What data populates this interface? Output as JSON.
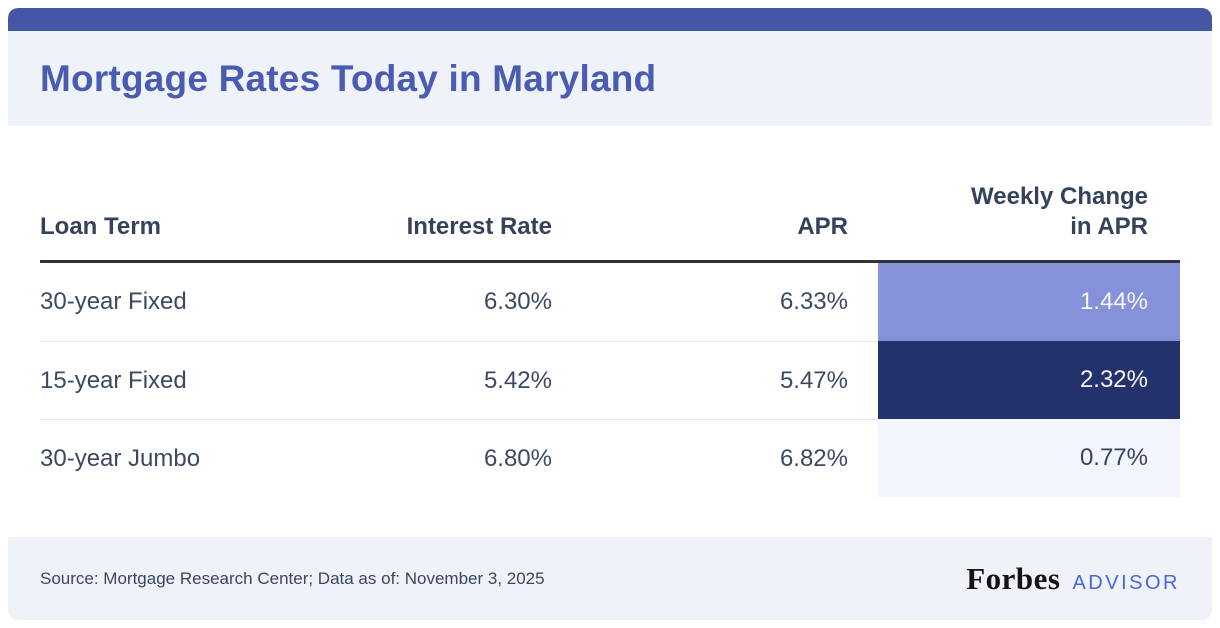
{
  "title": "Mortgage Rates Today in Maryland",
  "table": {
    "columns": {
      "loan_term": "Loan Term",
      "interest_rate": "Interest Rate",
      "apr": "APR",
      "weekly_change": "Weekly Change\nin APR"
    },
    "rows": [
      {
        "term": "30-year Fixed",
        "rate": "6.30%",
        "apr": "6.33%",
        "change": "1.44%",
        "change_bg": "#8591d8",
        "change_color": "#f7f6fb"
      },
      {
        "term": "15-year Fixed",
        "rate": "5.42%",
        "apr": "5.47%",
        "change": "2.32%",
        "change_bg": "#24326b",
        "change_color": "#f7f6fb"
      },
      {
        "term": "30-year Jumbo",
        "rate": "6.80%",
        "apr": "6.82%",
        "change": "0.77%",
        "change_bg": "#f3f5fd",
        "change_color": "#36425c"
      }
    ]
  },
  "footer": {
    "source": "Source: Mortgage Research Center; Data as of: November 3, 2025",
    "brand": "Forbes",
    "brand_suffix": "ADVISOR"
  },
  "colors": {
    "accent_bar": "#4456a4",
    "band_background": "#eff2f8",
    "title_text": "#4a5cb2",
    "header_text": "#36425c",
    "body_text": "#3c4962",
    "header_rule": "#2f3038",
    "row_divider": "#e9e9ec",
    "change_high": "#24326b",
    "change_medium": "#8591d8",
    "change_low": "#f3f5fd",
    "advisor_text": "#4a67d9"
  },
  "chart_data": {
    "type": "table",
    "title": "Mortgage Rates Today in Maryland",
    "columns": [
      "Loan Term",
      "Interest Rate",
      "APR",
      "Weekly Change in APR"
    ],
    "rows": [
      [
        "30-year Fixed",
        "6.30%",
        "6.33%",
        "1.44%"
      ],
      [
        "15-year Fixed",
        "5.42%",
        "5.47%",
        "2.32%"
      ],
      [
        "30-year Jumbo",
        "6.80%",
        "6.82%",
        "0.77%"
      ]
    ],
    "notes": "Weekly Change in APR column is heat-shaded: 1.44% medium purple-blue, 2.32% dark navy (highest), 0.77% pale lavender (lowest); values shown as of November 3, 2025 per Mortgage Research Center"
  }
}
